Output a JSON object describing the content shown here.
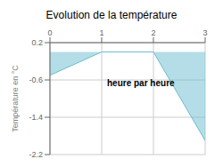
{
  "chart_data": {
    "type": "area",
    "title": "Evolution de la température",
    "ylabel": "Température en °C",
    "annotation": "heure par heure",
    "x": [
      0,
      1,
      2,
      3
    ],
    "values": [
      -0.5,
      0.0,
      0.0,
      -1.9
    ],
    "color": "#6abcd0",
    "xlim": [
      0,
      3
    ],
    "ylim": [
      -2.2,
      0.2
    ],
    "xticks": [
      0,
      1,
      2,
      3
    ],
    "yticks": [
      0.2,
      -0.6,
      -1.4,
      -2.2
    ],
    "grid": true
  }
}
